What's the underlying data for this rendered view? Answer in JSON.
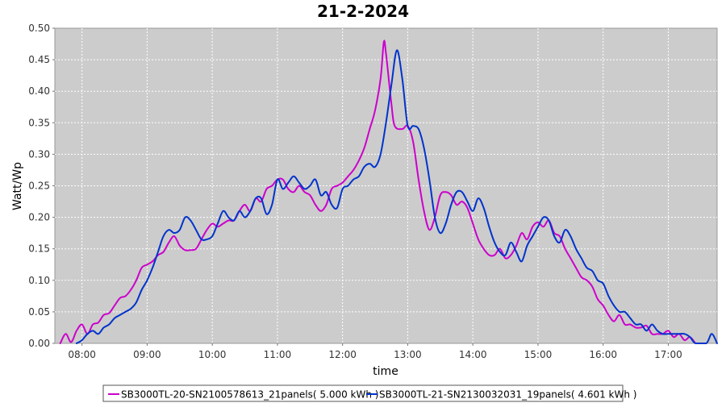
{
  "chart_data": {
    "type": "line",
    "title": "21-2-2024",
    "xlabel": "time",
    "ylabel": "Watt/Wp",
    "ylim": [
      0,
      0.5
    ],
    "xlim": [
      "07:35",
      "17:45"
    ],
    "x_ticks": [
      "08:00",
      "09:00",
      "10:00",
      "11:00",
      "12:00",
      "13:00",
      "14:00",
      "15:00",
      "16:00",
      "17:00"
    ],
    "y_ticks": [
      "0.00",
      "0.05",
      "0.10",
      "0.15",
      "0.20",
      "0.25",
      "0.30",
      "0.35",
      "0.40",
      "0.45",
      "0.50"
    ],
    "grid": true,
    "legend_position": "bottom",
    "colors": {
      "plot_background": "#cccccc",
      "grid": "#ffffff"
    },
    "series": [
      {
        "name": "SB3000TL-20-SN2100578613_21panels( 5.000 kWh )",
        "color": "#cc00cc",
        "points": [
          [
            "07:40",
            0.0
          ],
          [
            "07:45",
            0.015
          ],
          [
            "07:50",
            0.002
          ],
          [
            "07:55",
            0.02
          ],
          [
            "08:00",
            0.03
          ],
          [
            "08:05",
            0.015
          ],
          [
            "08:10",
            0.03
          ],
          [
            "08:15",
            0.033
          ],
          [
            "08:20",
            0.045
          ],
          [
            "08:25",
            0.048
          ],
          [
            "08:30",
            0.06
          ],
          [
            "08:35",
            0.072
          ],
          [
            "08:40",
            0.075
          ],
          [
            "08:45",
            0.085
          ],
          [
            "08:50",
            0.1
          ],
          [
            "08:55",
            0.12
          ],
          [
            "09:00",
            0.125
          ],
          [
            "09:05",
            0.13
          ],
          [
            "09:10",
            0.14
          ],
          [
            "09:15",
            0.145
          ],
          [
            "09:20",
            0.16
          ],
          [
            "09:25",
            0.17
          ],
          [
            "09:30",
            0.155
          ],
          [
            "09:35",
            0.148
          ],
          [
            "09:40",
            0.148
          ],
          [
            "09:45",
            0.15
          ],
          [
            "09:50",
            0.165
          ],
          [
            "09:55",
            0.18
          ],
          [
            "10:00",
            0.19
          ],
          [
            "10:05",
            0.185
          ],
          [
            "10:10",
            0.19
          ],
          [
            "10:15",
            0.195
          ],
          [
            "10:20",
            0.195
          ],
          [
            "10:25",
            0.21
          ],
          [
            "10:30",
            0.22
          ],
          [
            "10:35",
            0.21
          ],
          [
            "10:40",
            0.23
          ],
          [
            "10:45",
            0.225
          ],
          [
            "10:50",
            0.245
          ],
          [
            "10:55",
            0.25
          ],
          [
            "11:00",
            0.26
          ],
          [
            "11:05",
            0.26
          ],
          [
            "11:10",
            0.245
          ],
          [
            "11:15",
            0.24
          ],
          [
            "11:20",
            0.25
          ],
          [
            "11:25",
            0.24
          ],
          [
            "11:30",
            0.235
          ],
          [
            "11:35",
            0.22
          ],
          [
            "11:40",
            0.21
          ],
          [
            "11:45",
            0.22
          ],
          [
            "11:50",
            0.245
          ],
          [
            "11:55",
            0.25
          ],
          [
            "12:00",
            0.255
          ],
          [
            "12:05",
            0.265
          ],
          [
            "12:10",
            0.275
          ],
          [
            "12:15",
            0.29
          ],
          [
            "12:20",
            0.31
          ],
          [
            "12:25",
            0.34
          ],
          [
            "12:30",
            0.37
          ],
          [
            "12:35",
            0.42
          ],
          [
            "12:38",
            0.478
          ],
          [
            "12:40",
            0.46
          ],
          [
            "12:45",
            0.38
          ],
          [
            "12:48",
            0.345
          ],
          [
            "12:55",
            0.34
          ],
          [
            "13:00",
            0.345
          ],
          [
            "13:05",
            0.32
          ],
          [
            "13:10",
            0.26
          ],
          [
            "13:15",
            0.21
          ],
          [
            "13:20",
            0.18
          ],
          [
            "13:25",
            0.2
          ],
          [
            "13:30",
            0.235
          ],
          [
            "13:35",
            0.24
          ],
          [
            "13:40",
            0.235
          ],
          [
            "13:45",
            0.22
          ],
          [
            "13:50",
            0.225
          ],
          [
            "13:55",
            0.215
          ],
          [
            "14:00",
            0.19
          ],
          [
            "14:05",
            0.165
          ],
          [
            "14:10",
            0.15
          ],
          [
            "14:15",
            0.14
          ],
          [
            "14:20",
            0.14
          ],
          [
            "14:25",
            0.15
          ],
          [
            "14:30",
            0.135
          ],
          [
            "14:35",
            0.14
          ],
          [
            "14:40",
            0.155
          ],
          [
            "14:45",
            0.175
          ],
          [
            "14:50",
            0.165
          ],
          [
            "14:55",
            0.185
          ],
          [
            "15:00",
            0.192
          ],
          [
            "15:05",
            0.185
          ],
          [
            "15:10",
            0.195
          ],
          [
            "15:15",
            0.175
          ],
          [
            "15:20",
            0.17
          ],
          [
            "15:25",
            0.15
          ],
          [
            "15:30",
            0.135
          ],
          [
            "15:35",
            0.12
          ],
          [
            "15:40",
            0.105
          ],
          [
            "15:45",
            0.1
          ],
          [
            "15:50",
            0.09
          ],
          [
            "15:55",
            0.07
          ],
          [
            "16:00",
            0.06
          ],
          [
            "16:05",
            0.045
          ],
          [
            "16:10",
            0.035
          ],
          [
            "16:15",
            0.045
          ],
          [
            "16:20",
            0.03
          ],
          [
            "16:25",
            0.03
          ],
          [
            "16:30",
            0.025
          ],
          [
            "16:35",
            0.025
          ],
          [
            "16:40",
            0.028
          ],
          [
            "16:45",
            0.015
          ],
          [
            "16:50",
            0.015
          ],
          [
            "16:55",
            0.015
          ],
          [
            "17:00",
            0.02
          ],
          [
            "17:05",
            0.01
          ],
          [
            "17:10",
            0.015
          ],
          [
            "17:15",
            0.005
          ],
          [
            "17:20",
            0.01
          ],
          [
            "17:25",
            0.0
          ]
        ]
      },
      {
        "name": "SB3000TL-21-SN2130032031_19panels( 4.601 kWh )",
        "color": "#0033cc",
        "points": [
          [
            "07:55",
            0.0
          ],
          [
            "08:00",
            0.005
          ],
          [
            "08:05",
            0.015
          ],
          [
            "08:10",
            0.02
          ],
          [
            "08:15",
            0.015
          ],
          [
            "08:20",
            0.025
          ],
          [
            "08:25",
            0.03
          ],
          [
            "08:30",
            0.04
          ],
          [
            "08:35",
            0.045
          ],
          [
            "08:40",
            0.05
          ],
          [
            "08:45",
            0.055
          ],
          [
            "08:50",
            0.065
          ],
          [
            "08:55",
            0.085
          ],
          [
            "09:00",
            0.1
          ],
          [
            "09:05",
            0.12
          ],
          [
            "09:10",
            0.145
          ],
          [
            "09:15",
            0.17
          ],
          [
            "09:20",
            0.18
          ],
          [
            "09:25",
            0.175
          ],
          [
            "09:30",
            0.18
          ],
          [
            "09:35",
            0.2
          ],
          [
            "09:40",
            0.195
          ],
          [
            "09:45",
            0.18
          ],
          [
            "09:50",
            0.165
          ],
          [
            "09:55",
            0.165
          ],
          [
            "10:00",
            0.17
          ],
          [
            "10:05",
            0.19
          ],
          [
            "10:10",
            0.21
          ],
          [
            "10:15",
            0.2
          ],
          [
            "10:20",
            0.195
          ],
          [
            "10:25",
            0.21
          ],
          [
            "10:30",
            0.2
          ],
          [
            "10:35",
            0.21
          ],
          [
            "10:40",
            0.23
          ],
          [
            "10:45",
            0.23
          ],
          [
            "10:50",
            0.205
          ],
          [
            "10:55",
            0.22
          ],
          [
            "11:00",
            0.26
          ],
          [
            "11:05",
            0.245
          ],
          [
            "11:10",
            0.255
          ],
          [
            "11:15",
            0.265
          ],
          [
            "11:20",
            0.255
          ],
          [
            "11:25",
            0.245
          ],
          [
            "11:30",
            0.25
          ],
          [
            "11:35",
            0.26
          ],
          [
            "11:40",
            0.235
          ],
          [
            "11:45",
            0.24
          ],
          [
            "11:50",
            0.22
          ],
          [
            "11:55",
            0.215
          ],
          [
            "12:00",
            0.245
          ],
          [
            "12:05",
            0.25
          ],
          [
            "12:10",
            0.26
          ],
          [
            "12:15",
            0.265
          ],
          [
            "12:20",
            0.28
          ],
          [
            "12:25",
            0.285
          ],
          [
            "12:30",
            0.28
          ],
          [
            "12:35",
            0.3
          ],
          [
            "12:40",
            0.35
          ],
          [
            "12:45",
            0.41
          ],
          [
            "12:50",
            0.465
          ],
          [
            "12:55",
            0.42
          ],
          [
            "13:00",
            0.345
          ],
          [
            "13:05",
            0.345
          ],
          [
            "13:10",
            0.34
          ],
          [
            "13:15",
            0.31
          ],
          [
            "13:20",
            0.26
          ],
          [
            "13:25",
            0.2
          ],
          [
            "13:30",
            0.175
          ],
          [
            "13:35",
            0.19
          ],
          [
            "13:40",
            0.22
          ],
          [
            "13:45",
            0.24
          ],
          [
            "13:50",
            0.24
          ],
          [
            "13:55",
            0.225
          ],
          [
            "14:00",
            0.21
          ],
          [
            "14:05",
            0.23
          ],
          [
            "14:10",
            0.215
          ],
          [
            "14:15",
            0.185
          ],
          [
            "14:20",
            0.16
          ],
          [
            "14:25",
            0.145
          ],
          [
            "14:30",
            0.14
          ],
          [
            "14:35",
            0.16
          ],
          [
            "14:40",
            0.145
          ],
          [
            "14:45",
            0.13
          ],
          [
            "14:50",
            0.155
          ],
          [
            "14:55",
            0.17
          ],
          [
            "15:00",
            0.185
          ],
          [
            "15:05",
            0.2
          ],
          [
            "15:10",
            0.195
          ],
          [
            "15:15",
            0.17
          ],
          [
            "15:20",
            0.16
          ],
          [
            "15:25",
            0.18
          ],
          [
            "15:30",
            0.17
          ],
          [
            "15:35",
            0.15
          ],
          [
            "15:40",
            0.135
          ],
          [
            "15:45",
            0.12
          ],
          [
            "15:50",
            0.115
          ],
          [
            "15:55",
            0.1
          ],
          [
            "16:00",
            0.095
          ],
          [
            "16:05",
            0.075
          ],
          [
            "16:10",
            0.06
          ],
          [
            "16:15",
            0.05
          ],
          [
            "16:20",
            0.05
          ],
          [
            "16:25",
            0.04
          ],
          [
            "16:30",
            0.03
          ],
          [
            "16:35",
            0.03
          ],
          [
            "16:40",
            0.02
          ],
          [
            "16:45",
            0.03
          ],
          [
            "16:50",
            0.02
          ],
          [
            "16:55",
            0.015
          ],
          [
            "17:00",
            0.015
          ],
          [
            "17:05",
            0.015
          ],
          [
            "17:10",
            0.015
          ],
          [
            "17:15",
            0.015
          ],
          [
            "17:20",
            0.01
          ],
          [
            "17:25",
            0.0
          ],
          [
            "17:35",
            0.0
          ],
          [
            "17:40",
            0.015
          ],
          [
            "17:45",
            0.0
          ]
        ]
      }
    ]
  }
}
